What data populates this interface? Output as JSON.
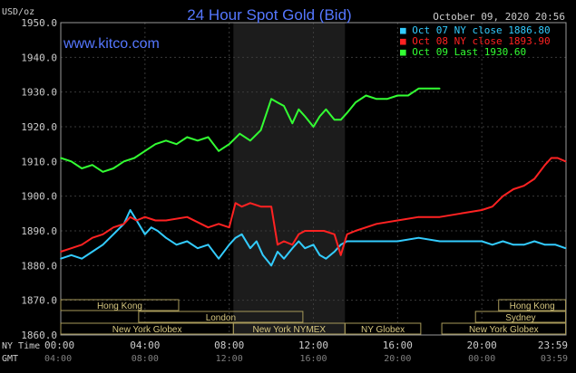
{
  "chart_data": {
    "type": "line",
    "title": "24 Hour Spot Gold (Bid)",
    "source": "www.kitco.com",
    "timestamp": "October 09, 2020 20:56",
    "unit_label": "USD/oz",
    "ylim": [
      1860,
      1950
    ],
    "y_ticks": [
      "1950.0",
      "1940.0",
      "1930.0",
      "1920.0",
      "1910.0",
      "1900.0",
      "1890.0",
      "1880.0",
      "1870.0",
      "1860.0"
    ],
    "y_tick_values": [
      1950,
      1940,
      1930,
      1920,
      1910,
      1900,
      1890,
      1880,
      1870,
      1860
    ],
    "x_row_labels": {
      "ny": "NY Time",
      "gmt": "GMT"
    },
    "x_ticks_ny": [
      "00:00",
      "04:00",
      "08:00",
      "12:00",
      "16:00",
      "20:00",
      "23:59"
    ],
    "x_ticks_gmt": [
      "04:00",
      "08:00",
      "12:00",
      "16:00",
      "20:00",
      "00:00",
      "03:59"
    ],
    "x_tick_hours": [
      0,
      4,
      8,
      12,
      16,
      20,
      23.98
    ],
    "shaded_range_hours": [
      8.2,
      13.5
    ],
    "legend_position": "top-right",
    "series": [
      {
        "name": "Oct 07 NY close 1886.80",
        "color": "#33ccff",
        "x": [
          0,
          0.5,
          1,
          1.5,
          2,
          2.5,
          3,
          3.3,
          3.6,
          4,
          4.3,
          4.6,
          5,
          5.5,
          6,
          6.5,
          7,
          7.5,
          8,
          8.3,
          8.6,
          9,
          9.3,
          9.6,
          10,
          10.3,
          10.6,
          11,
          11.3,
          11.6,
          12,
          12.3,
          12.6,
          13,
          13.3,
          13.6,
          14,
          15,
          16,
          17,
          18,
          19,
          20,
          20.5,
          21,
          21.5,
          22,
          22.5,
          23,
          23.5,
          23.98
        ],
        "values": [
          1882,
          1883,
          1882,
          1884,
          1886,
          1889,
          1892,
          1896,
          1893,
          1889,
          1891,
          1890,
          1888,
          1886,
          1887,
          1885,
          1886,
          1882,
          1886,
          1888,
          1889,
          1885,
          1887,
          1883,
          1880,
          1884,
          1882,
          1885,
          1887,
          1885,
          1886,
          1883,
          1882,
          1884,
          1886,
          1887,
          1887,
          1887,
          1887,
          1888,
          1887,
          1887,
          1887,
          1886,
          1887,
          1886,
          1886,
          1887,
          1886,
          1886,
          1885
        ]
      },
      {
        "name": "Oct 08 NY close 1893.90",
        "color": "#ff2222",
        "x": [
          0,
          0.5,
          1,
          1.5,
          2,
          2.5,
          3,
          3.3,
          3.6,
          4,
          4.5,
          5,
          6,
          7,
          7.5,
          8,
          8.3,
          8.6,
          9,
          9.5,
          10,
          10.3,
          10.6,
          11,
          11.3,
          11.6,
          12,
          12.5,
          13,
          13.3,
          13.6,
          14,
          15,
          16,
          17,
          18,
          19,
          20,
          20.5,
          21,
          21.5,
          22,
          22.5,
          23,
          23.3,
          23.6,
          23.98
        ],
        "values": [
          1884,
          1885,
          1886,
          1888,
          1889,
          1891,
          1892,
          1894,
          1893,
          1894,
          1893,
          1893,
          1894,
          1891,
          1892,
          1891,
          1898,
          1897,
          1898,
          1897,
          1897,
          1886,
          1887,
          1886,
          1889,
          1890,
          1890,
          1890,
          1889,
          1883,
          1889,
          1890,
          1892,
          1893,
          1894,
          1894,
          1895,
          1896,
          1897,
          1900,
          1902,
          1903,
          1905,
          1909,
          1911,
          1911,
          1910
        ]
      },
      {
        "name": "Oct 09 Last 1930.60",
        "color": "#33ff33",
        "x": [
          0,
          0.5,
          1,
          1.5,
          2,
          2.5,
          3,
          3.5,
          4,
          4.5,
          5,
          5.5,
          6,
          6.5,
          7,
          7.5,
          8,
          8.5,
          9,
          9.5,
          10,
          10.3,
          10.6,
          11,
          11.3,
          11.6,
          12,
          12.3,
          12.6,
          13,
          13.3,
          13.6,
          14,
          14.5,
          15,
          15.5,
          16,
          16.5,
          17,
          17.5,
          17.8,
          18
        ],
        "values": [
          1911,
          1910,
          1908,
          1909,
          1907,
          1908,
          1910,
          1911,
          1913,
          1915,
          1916,
          1915,
          1917,
          1916,
          1917,
          1913,
          1915,
          1918,
          1916,
          1919,
          1928,
          1927,
          1926,
          1921,
          1925,
          1923,
          1920,
          1923,
          1925,
          1922,
          1922,
          1924,
          1927,
          1929,
          1928,
          1928,
          1929,
          1929,
          1931,
          1931,
          1931,
          1931
        ]
      }
    ],
    "session_rows": [
      {
        "row": 1,
        "sessions": [
          {
            "label": "Hong Kong",
            "start": 0,
            "end": 5.6
          },
          {
            "label": "Hong Kong",
            "start": 20.8,
            "end": 23.98
          }
        ]
      },
      {
        "row": 2,
        "sessions": [
          {
            "label": "London",
            "start": 3.7,
            "end": 11.5
          },
          {
            "label": "Sydney",
            "start": 19.7,
            "end": 23.98
          }
        ]
      },
      {
        "row": 3,
        "sessions": [
          {
            "label": "New York Globex",
            "start": 0,
            "end": 8.2
          },
          {
            "label": "New York NYMEX",
            "start": 8.2,
            "end": 13.5
          },
          {
            "label": "NY Globex",
            "start": 13.5,
            "end": 17.1
          },
          {
            "label": "New York Globex",
            "start": 18.1,
            "end": 23.98
          }
        ]
      }
    ]
  }
}
